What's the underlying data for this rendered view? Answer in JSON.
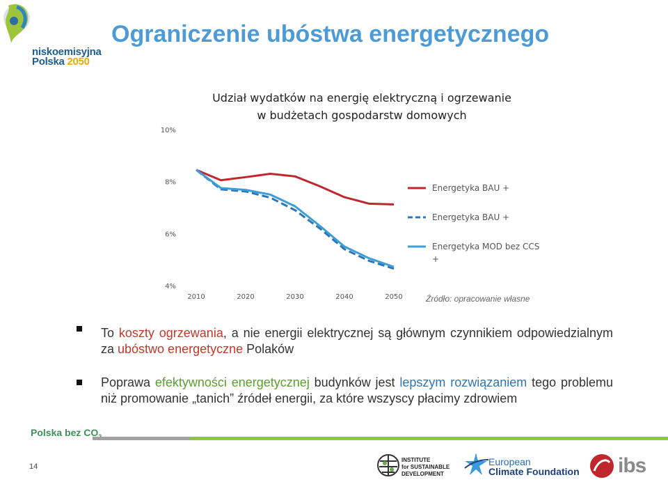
{
  "brand": {
    "name_line1": "niskoemisyjna",
    "name_line2_a": "Polska ",
    "name_line2_b": "2050"
  },
  "page_title": "Ograniczenie ubóstwa energetycznego",
  "chart_title_line1": "Udział wydatków na energię elektryczną i ogrzewanie",
  "chart_title_line2": "w budżetach gospodarstw domowych",
  "chart_data": {
    "type": "line",
    "x": [
      2010,
      2015,
      2020,
      2025,
      2030,
      2035,
      2040,
      2045,
      2050
    ],
    "xticks": [
      "2010",
      "2020",
      "2030",
      "2040",
      "2050"
    ],
    "yticks": [
      "4%",
      "6%",
      "8%",
      "10%"
    ],
    "ylim": [
      4,
      10
    ],
    "series": [
      {
        "name": "Energetyka BAU +",
        "style": "solid",
        "color": "#c0272d",
        "values": [
          8.45,
          8.05,
          8.17,
          8.3,
          8.2,
          7.82,
          7.4,
          7.15,
          7.12
        ]
      },
      {
        "name": "Energetyka BAU +",
        "style": "dashed",
        "color": "#2e75b6",
        "values": [
          8.45,
          7.7,
          7.62,
          7.38,
          6.9,
          6.2,
          5.4,
          4.95,
          4.65
        ]
      },
      {
        "name": "Energetyka MOD bez CCS +",
        "style": "solid",
        "color": "#3a9fd8",
        "values": [
          8.45,
          7.75,
          7.68,
          7.5,
          7.05,
          6.3,
          5.5,
          5.05,
          4.72
        ]
      }
    ]
  },
  "source": "Źródło: opracowanie własne",
  "bullet1": {
    "p1": "To ",
    "p2": "koszty ogrzewania",
    "p3": ", a nie energii elektrycznej są głównym czynnikiem odpowiedzialnym za ",
    "p4": "ubóstwo energetyczne",
    "p5": " Polaków"
  },
  "bullet2": {
    "p1": "Poprawa ",
    "p2": "efektywności energetycznej",
    "p3": " budynków jest ",
    "p4": "lepszym rozwiązaniem",
    "p5": " tego problemu niż promowanie „tanich” źródeł energii, za które wszyscy płacimy zdrowiem"
  },
  "footer": {
    "brand_a": "Polska bez CO",
    "brand_sub": "2",
    "page_number": "14",
    "iisd_l1": "INSTITUTE",
    "iisd_l2": "for SUSTAINABLE",
    "iisd_l3": "DEVELOPMENT",
    "ecf_l1": "European",
    "ecf_l2": "Climate Foundation",
    "ibs": "ibs"
  }
}
